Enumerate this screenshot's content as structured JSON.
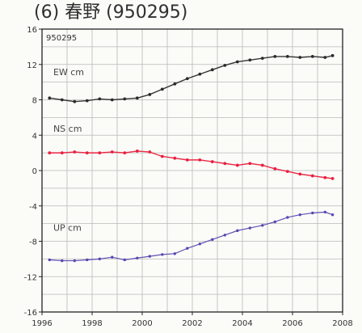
{
  "chart_data": {
    "type": "scatter",
    "title": "(6) 春野 (950295)",
    "station_label": "950295",
    "xlabel": "",
    "ylabel": "",
    "xlim": [
      1996,
      2008
    ],
    "ylim": [
      -16,
      16
    ],
    "x_ticks": [
      1996,
      1998,
      2000,
      2002,
      2004,
      2006,
      2008
    ],
    "y_ticks": [
      16,
      12,
      8,
      4,
      0,
      -4,
      -8,
      -12,
      -16
    ],
    "grid": true,
    "x_units": "year",
    "series": [
      {
        "name": "EW cm",
        "color": "#2b2b2b",
        "points": [
          [
            1996.3,
            8.2
          ],
          [
            1996.8,
            8.0
          ],
          [
            1997.3,
            7.8
          ],
          [
            1997.8,
            7.9
          ],
          [
            1998.3,
            8.1
          ],
          [
            1998.8,
            8.0
          ],
          [
            1999.3,
            8.1
          ],
          [
            1999.8,
            8.2
          ],
          [
            2000.3,
            8.6
          ],
          [
            2000.8,
            9.2
          ],
          [
            2001.3,
            9.8
          ],
          [
            2001.8,
            10.4
          ],
          [
            2002.3,
            10.9
          ],
          [
            2002.8,
            11.4
          ],
          [
            2003.3,
            11.9
          ],
          [
            2003.8,
            12.3
          ],
          [
            2004.3,
            12.5
          ],
          [
            2004.8,
            12.7
          ],
          [
            2005.3,
            12.9
          ],
          [
            2005.8,
            12.9
          ],
          [
            2006.3,
            12.8
          ],
          [
            2006.8,
            12.9
          ],
          [
            2007.3,
            12.8
          ],
          [
            2007.6,
            13.0
          ]
        ]
      },
      {
        "name": "NS cm",
        "color": "#ea1f3d",
        "points": [
          [
            1996.3,
            2.0
          ],
          [
            1996.8,
            2.0
          ],
          [
            1997.3,
            2.1
          ],
          [
            1997.8,
            2.0
          ],
          [
            1998.3,
            2.0
          ],
          [
            1998.8,
            2.1
          ],
          [
            1999.3,
            2.0
          ],
          [
            1999.8,
            2.2
          ],
          [
            2000.3,
            2.1
          ],
          [
            2000.8,
            1.6
          ],
          [
            2001.3,
            1.4
          ],
          [
            2001.8,
            1.2
          ],
          [
            2002.3,
            1.2
          ],
          [
            2002.8,
            1.0
          ],
          [
            2003.3,
            0.8
          ],
          [
            2003.8,
            0.6
          ],
          [
            2004.3,
            0.8
          ],
          [
            2004.8,
            0.6
          ],
          [
            2005.3,
            0.2
          ],
          [
            2005.8,
            -0.1
          ],
          [
            2006.3,
            -0.4
          ],
          [
            2006.8,
            -0.6
          ],
          [
            2007.3,
            -0.8
          ],
          [
            2007.6,
            -0.9
          ]
        ]
      },
      {
        "name": "UP cm",
        "color": "#5a46b0",
        "points": [
          [
            1996.3,
            -10.1
          ],
          [
            1996.8,
            -10.2
          ],
          [
            1997.3,
            -10.2
          ],
          [
            1997.8,
            -10.1
          ],
          [
            1998.3,
            -10.0
          ],
          [
            1998.8,
            -9.8
          ],
          [
            1999.3,
            -10.1
          ],
          [
            1999.8,
            -9.9
          ],
          [
            2000.3,
            -9.7
          ],
          [
            2000.8,
            -9.5
          ],
          [
            2001.3,
            -9.4
          ],
          [
            2001.8,
            -8.8
          ],
          [
            2002.3,
            -8.3
          ],
          [
            2002.8,
            -7.8
          ],
          [
            2003.3,
            -7.3
          ],
          [
            2003.8,
            -6.8
          ],
          [
            2004.3,
            -6.5
          ],
          [
            2004.8,
            -6.2
          ],
          [
            2005.3,
            -5.8
          ],
          [
            2005.8,
            -5.3
          ],
          [
            2006.3,
            -5.0
          ],
          [
            2006.8,
            -4.8
          ],
          [
            2007.3,
            -4.7
          ],
          [
            2007.6,
            -5.0
          ]
        ]
      }
    ]
  }
}
